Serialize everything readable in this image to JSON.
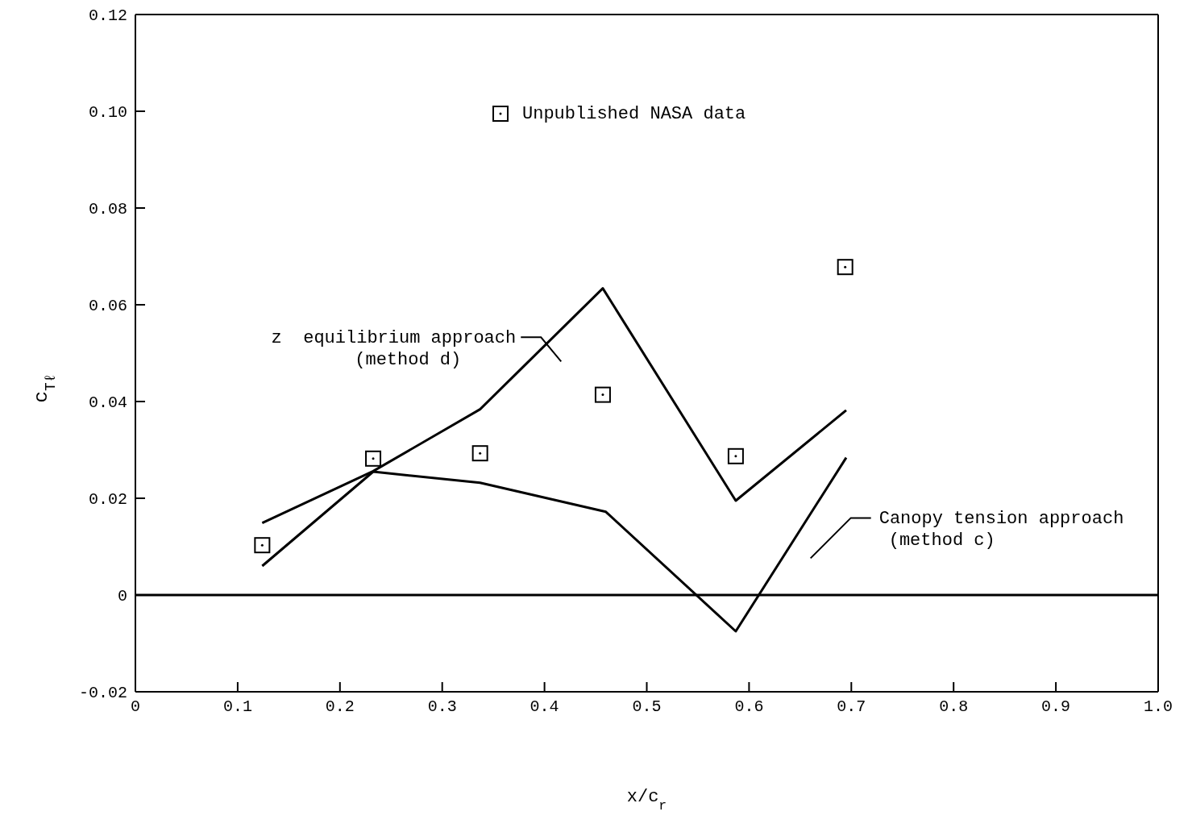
{
  "chart_data": {
    "type": "line",
    "xlabel": "x/c$_{r}$",
    "ylabel": "c$_{Tℓ}$",
    "xlim": [
      0,
      1
    ],
    "xticks": [
      0,
      0.1,
      0.2,
      0.3,
      0.4,
      0.5,
      0.6,
      0.7,
      0.8,
      0.9,
      {
        "value": 1,
        "label": "1.0"
      }
    ],
    "ylim": [
      -0.02,
      0.12
    ],
    "yticks": [
      -0.02,
      0,
      0.02,
      0.04,
      0.06,
      0.08,
      {
        "value": 0.1,
        "label": "0.10"
      },
      0.12
    ],
    "grid": false,
    "legend": "top",
    "line_style": "solid",
    "ref_lines": [
      {
        "axis": "y",
        "value": 0,
        "color": "#000000"
      }
    ],
    "series": [
      {
        "name": "Unpublished NASA data",
        "type": "scatter",
        "marker": "square",
        "color": "#000000",
        "x": [
          0.124,
          0.2325,
          0.337,
          0.457,
          0.587,
          0.694
        ],
        "values": [
          0.0103,
          0.0282,
          0.0293,
          0.0414,
          0.0287,
          0.0678
        ]
      },
      {
        "name": "z  equilibrium approach (method d)",
        "marker": "none",
        "color": "#000000",
        "x": [
          0.124,
          0.2325,
          0.337,
          0.457,
          0.587,
          0.695
        ],
        "values": [
          0.0149,
          0.0256,
          0.0384,
          0.0634,
          0.0195,
          0.0382
        ]
      },
      {
        "name": "Canopy tension approach (method c)",
        "marker": "none",
        "color": "#000000",
        "x": [
          0.124,
          0.2325,
          0.337,
          0.46,
          0.587,
          0.695
        ],
        "values": [
          0.006,
          0.0255,
          0.0232,
          0.0172,
          -0.0075,
          0.0284
        ]
      }
    ]
  }
}
